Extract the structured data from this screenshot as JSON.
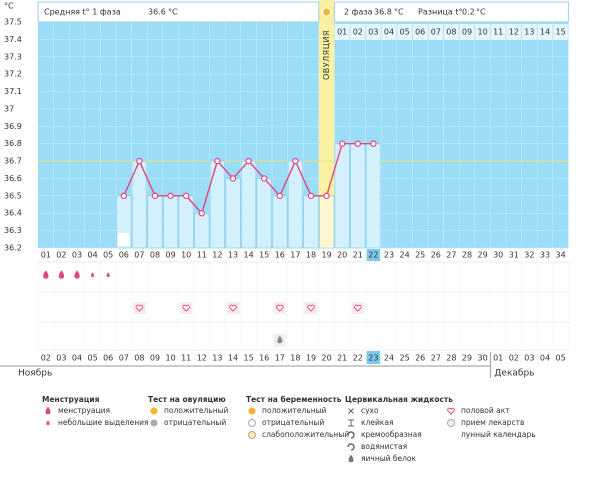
{
  "chart_data": {
    "type": "line",
    "unit": "°C",
    "phase1_label": "Средняя t° 1 фаза",
    "phase1_avg": 36.6,
    "phase2_label": "2 фаза",
    "phase2_avg": 36.8,
    "diff_label": "Разница t°",
    "diff": 0.2,
    "ovulation_label": "ОВУЛЯЦИЯ",
    "ovulation_day": "19",
    "today": "22",
    "categories": [
      "01",
      "02",
      "03",
      "04",
      "05",
      "06",
      "07",
      "08",
      "09",
      "10",
      "11",
      "12",
      "13",
      "14",
      "15",
      "16",
      "17",
      "18",
      "19",
      "20",
      "21",
      "22",
      "23",
      "24",
      "25",
      "26",
      "27",
      "28",
      "29",
      "30",
      "31",
      "32",
      "33",
      "34"
    ],
    "values": [
      null,
      null,
      null,
      null,
      null,
      36.5,
      36.7,
      36.5,
      36.5,
      36.5,
      36.4,
      36.7,
      36.6,
      36.7,
      36.6,
      36.5,
      36.7,
      36.5,
      36.5,
      36.8,
      36.8,
      36.8,
      null,
      null,
      null,
      null,
      null,
      null,
      null,
      null,
      null,
      null,
      null,
      null
    ],
    "color": "#e4457f",
    "coverline": 36.7,
    "ylim": [
      36.2,
      37.5
    ],
    "yticks": [
      36.2,
      36.3,
      36.4,
      36.5,
      36.6,
      36.7,
      36.8,
      36.9,
      37,
      37.1,
      37.2,
      37.3,
      37.4,
      37.5
    ],
    "phase2_days": [
      "01",
      "02",
      "03",
      "04",
      "05",
      "06",
      "07",
      "08",
      "09",
      "10",
      "11",
      "12",
      "13",
      "14",
      "15"
    ],
    "dates": [
      "02",
      "03",
      "04",
      "05",
      "06",
      "07",
      "08",
      "09",
      "10",
      "11",
      "12",
      "13",
      "14",
      "15",
      "16",
      "17",
      "18",
      "19",
      "20",
      "21",
      "22",
      "23",
      "24",
      "25",
      "26",
      "27",
      "28",
      "29",
      "30",
      "01",
      "02",
      "03",
      "04",
      "05"
    ],
    "date_colors": [
      "#333",
      "#d9263b",
      "#d9263b",
      "#333",
      "#333",
      "#333",
      "#333",
      "#333",
      "#d9263b",
      "#d9263b",
      "#333",
      "#333",
      "#333",
      "#333",
      "#333",
      "#d9263b",
      "#d9263b",
      "#333",
      "#333",
      "#333",
      "#333",
      "#333",
      "#d9263b",
      "#d9263b",
      "#333",
      "#333",
      "#333",
      "#333",
      "#333",
      "#d9263b",
      "#d9263b",
      "#333",
      "#333",
      "#333"
    ],
    "months": [
      "Ноябрь",
      "Декабрь"
    ],
    "marks": {
      "menstruation": [
        "01",
        "02",
        "03"
      ],
      "spotting": [
        "04",
        "05"
      ],
      "intercourse": [
        "07",
        "10",
        "13",
        "16",
        "18",
        "21"
      ],
      "lunar": [
        "06"
      ],
      "egg_white": [
        "16"
      ]
    },
    "legend": [
      {
        "title": "Менструация",
        "items": [
          "менструация",
          "небольшие выделения"
        ]
      },
      {
        "title": "Тест на овуляцию",
        "items": [
          "положительный",
          "отрицательный"
        ]
      },
      {
        "title": "Тест на беременность",
        "items": [
          "положительный",
          "отрицательный",
          "слабоположительный"
        ]
      },
      {
        "title": "Цервикальная жидкость",
        "items": [
          "сухо",
          "клейкая",
          "кремообразная",
          "водянистая",
          "яичный белок"
        ]
      },
      {
        "title": null,
        "items": [
          "половой акт",
          "прием лекарств",
          "лунный календарь"
        ]
      }
    ]
  }
}
